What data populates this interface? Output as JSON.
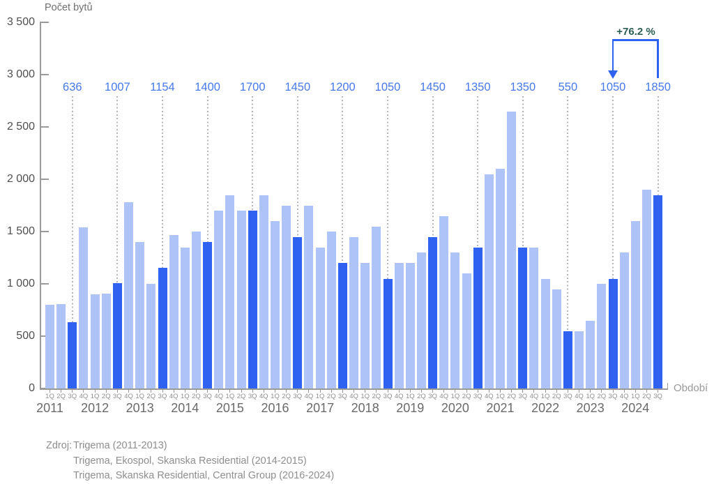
{
  "chart_data": {
    "type": "bar",
    "ylabel": "Počet bytů",
    "xlabel": "Období",
    "ylim": [
      0,
      3500
    ],
    "grid": "dotted vertical guides on highlighted quarters only",
    "legend": "none",
    "yticks": [
      {
        "value": 3500,
        "label": "3 500"
      },
      {
        "value": 3000,
        "label": "3 000"
      },
      {
        "value": 2500,
        "label": "2 500"
      },
      {
        "value": 2000,
        "label": "2 000"
      },
      {
        "value": 1500,
        "label": "1 500"
      },
      {
        "value": 1000,
        "label": "1 000"
      },
      {
        "value": 500,
        "label": "500"
      },
      {
        "value": 0,
        "label": "0"
      }
    ],
    "highlight_quarter_index": 2,
    "years": [
      {
        "year": "2011",
        "quarters": [
          "1Q",
          "2Q",
          "3Q",
          "4Q"
        ],
        "values": [
          800,
          810,
          636,
          1540
        ],
        "q3_label": "636"
      },
      {
        "year": "2012",
        "quarters": [
          "1Q",
          "2Q",
          "3Q",
          "4Q"
        ],
        "values": [
          900,
          905,
          1007,
          1780
        ],
        "q3_label": "1007"
      },
      {
        "year": "2013",
        "quarters": [
          "1Q",
          "2Q",
          "3Q",
          "4Q"
        ],
        "values": [
          1400,
          1000,
          1154,
          1470
        ],
        "q3_label": "1154"
      },
      {
        "year": "2014",
        "quarters": [
          "1Q",
          "2Q",
          "3Q",
          "4Q"
        ],
        "values": [
          1350,
          1500,
          1400,
          1700
        ],
        "q3_label": "1400"
      },
      {
        "year": "2015",
        "quarters": [
          "1Q",
          "2Q",
          "3Q",
          "4Q"
        ],
        "values": [
          1850,
          1700,
          1700,
          1850
        ],
        "q3_label": "1700"
      },
      {
        "year": "2016",
        "quarters": [
          "1Q",
          "2Q",
          "3Q",
          "4Q"
        ],
        "values": [
          1600,
          1750,
          1450,
          1750
        ],
        "q3_label": "1450"
      },
      {
        "year": "2017",
        "quarters": [
          "1Q",
          "2Q",
          "3Q",
          "4Q"
        ],
        "values": [
          1350,
          1500,
          1200,
          1450
        ],
        "q3_label": "1200"
      },
      {
        "year": "2018",
        "quarters": [
          "1Q",
          "2Q",
          "3Q",
          "4Q"
        ],
        "values": [
          1200,
          1550,
          1050,
          1200
        ],
        "q3_label": "1050"
      },
      {
        "year": "2019",
        "quarters": [
          "1Q",
          "2Q",
          "3Q",
          "4Q"
        ],
        "values": [
          1200,
          1300,
          1450,
          1650
        ],
        "q3_label": "1450"
      },
      {
        "year": "2020",
        "quarters": [
          "1Q",
          "2Q",
          "3Q",
          "4Q"
        ],
        "values": [
          1300,
          1100,
          1350,
          2050
        ],
        "q3_label": "1350"
      },
      {
        "year": "2021",
        "quarters": [
          "1Q",
          "2Q",
          "3Q",
          "4Q"
        ],
        "values": [
          2100,
          2650,
          1350,
          1350
        ],
        "q3_label": "1350"
      },
      {
        "year": "2022",
        "quarters": [
          "1Q",
          "2Q",
          "3Q",
          "4Q"
        ],
        "values": [
          1050,
          950,
          550,
          550
        ],
        "q3_label": "550"
      },
      {
        "year": "2023",
        "quarters": [
          "1Q",
          "2Q",
          "3Q",
          "4Q"
        ],
        "values": [
          650,
          1000,
          1050,
          1300
        ],
        "q3_label": "1050"
      },
      {
        "year": "2024",
        "quarters": [
          "1Q",
          "2Q",
          "3Q"
        ],
        "values": [
          1600,
          1900,
          1850
        ],
        "q3_label": "1850"
      }
    ],
    "annotation": {
      "text": "+76.2 %",
      "from_year": "2023",
      "to_year": "2024"
    },
    "colors": {
      "bar_light": "#aec3f8",
      "bar_dark": "#2f62f0",
      "value_label": "#4678ec",
      "annotation_text": "#2a5e54",
      "annotation_arrow": "#2e62f0",
      "axis": "#9a9a9a"
    }
  },
  "source": {
    "prefix": "Zdroj:",
    "lines": [
      "Trigema (2011-2013)",
      "Trigema, Ekospol, Skanska Residential (2014-2015)",
      "Trigema, Skanska Residential, Central Group (2016-2024)"
    ]
  }
}
